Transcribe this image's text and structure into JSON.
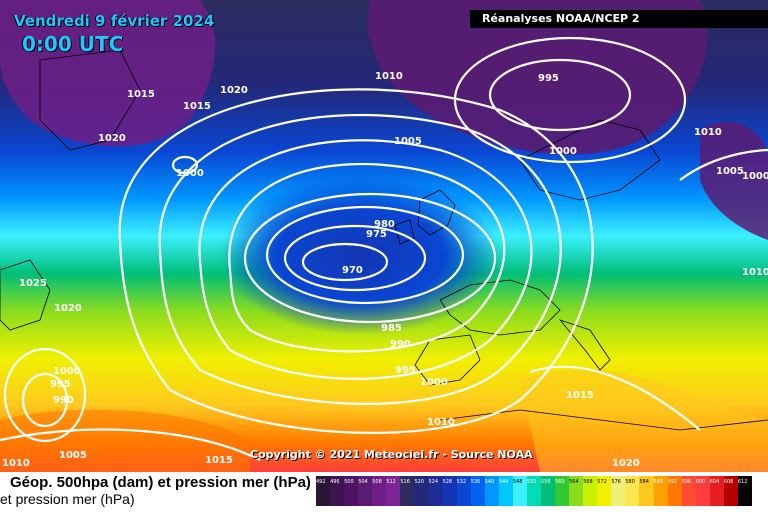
{
  "header": {
    "date": "Vendredi 9 février 2024",
    "time": "0:00 UTC",
    "source": "Réanalyses NOAA/NCEP 2"
  },
  "copyright": "Copyright © 2021 Meteociel.fr - Source NOAA",
  "legend": {
    "line1": "Géop. 500hpa (dam) et pression mer (hPa)",
    "line2": "et pression mer (hPa)",
    "scale": [
      {
        "label": "492",
        "color": "#2a1436"
      },
      {
        "label": "496",
        "color": "#3c1450"
      },
      {
        "label": "500",
        "color": "#4e1464"
      },
      {
        "label": "504",
        "color": "#5a1c72"
      },
      {
        "label": "508",
        "color": "#6e1e86"
      },
      {
        "label": "512",
        "color": "#7e2396"
      },
      {
        "label": "516",
        "color": "#2c2c5e"
      },
      {
        "label": "520",
        "color": "#232878"
      },
      {
        "label": "524",
        "color": "#1e2d96"
      },
      {
        "label": "528",
        "color": "#1436b4"
      },
      {
        "label": "532",
        "color": "#0a46d2"
      },
      {
        "label": "536",
        "color": "#0064f0"
      },
      {
        "label": "540",
        "color": "#0096ff"
      },
      {
        "label": "544",
        "color": "#00c8ff"
      },
      {
        "label": "548",
        "color": "#3cf0ff"
      },
      {
        "label": "552",
        "color": "#00dcb4"
      },
      {
        "label": "556",
        "color": "#00be78"
      },
      {
        "label": "560",
        "color": "#32c832"
      },
      {
        "label": "564",
        "color": "#8cdc1e"
      },
      {
        "label": "568",
        "color": "#c8f000"
      },
      {
        "label": "572",
        "color": "#f0f000"
      },
      {
        "label": "576",
        "color": "#f0f078"
      },
      {
        "label": "580",
        "color": "#ffe650"
      },
      {
        "label": "584",
        "color": "#ffc81e"
      },
      {
        "label": "588",
        "color": "#ffa000"
      },
      {
        "label": "592",
        "color": "#ff7800"
      },
      {
        "label": "596",
        "color": "#ff4b32"
      },
      {
        "label": "600",
        "color": "#ff3c3c"
      },
      {
        "label": "604",
        "color": "#e61e1e"
      },
      {
        "label": "608",
        "color": "#b40000"
      },
      {
        "label": "612",
        "color": "#000000"
      }
    ]
  },
  "isobar_labels": [
    "1015",
    "1015",
    "1020",
    "1020",
    "1010",
    "995",
    "1010",
    "1005",
    "1000",
    "1000",
    "1005",
    "1000",
    "980",
    "975",
    "970",
    "1010",
    "1025",
    "1020",
    "985",
    "990",
    "1000",
    "995",
    "990",
    "995",
    "1000",
    "1015",
    "1010",
    "1005",
    "1015",
    "1010",
    "1020"
  ]
}
